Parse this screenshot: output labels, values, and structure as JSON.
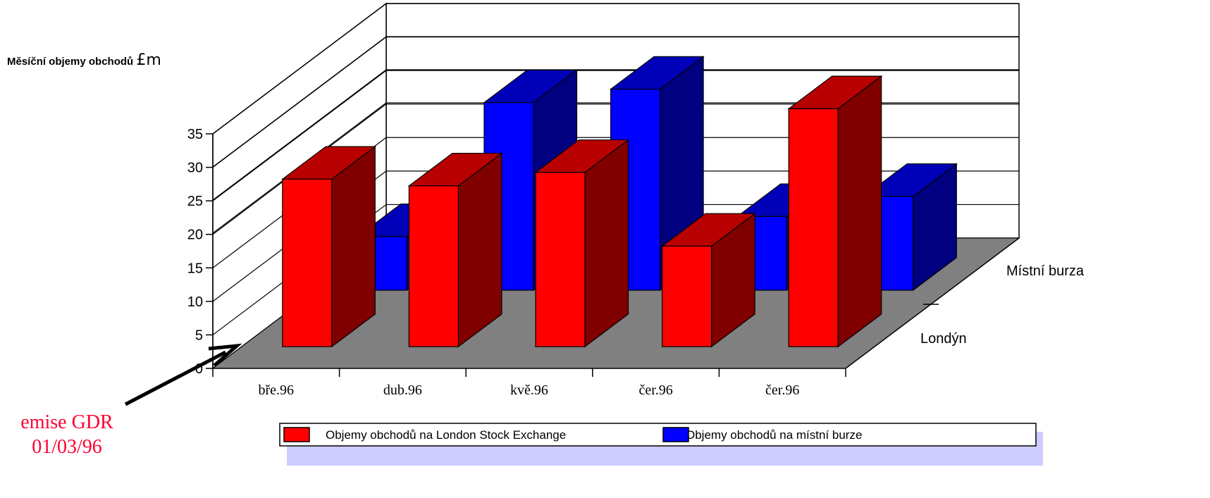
{
  "chart_data": {
    "type": "bar",
    "style": "3d-column-depth",
    "title": "Měsíční objemy obchodů",
    "title_unit": "£m",
    "categories": [
      "bře.96",
      "dub.96",
      "kvě.96",
      "čer.96",
      "čer.96"
    ],
    "depth_labels": [
      "Londýn",
      "Místní burza"
    ],
    "yticks": [
      "0",
      "5",
      "10",
      "15",
      "20",
      "25",
      "30",
      "35"
    ],
    "ylim": [
      0,
      35
    ],
    "grid": true,
    "legend_position": "bottom",
    "series": [
      {
        "name": "Objemy obchodů na London Stock Exchange",
        "depth": "Londýn",
        "values": [
          25,
          24,
          26,
          15,
          35.5
        ],
        "color": "#ff0000"
      },
      {
        "name": "Objemy obchodů na místní burze",
        "depth": "Místní burza",
        "values": [
          8,
          28,
          30,
          11,
          14
        ],
        "color": "#0000ff"
      }
    ],
    "annotation": {
      "lines": [
        "emise GDR",
        "01/03/96"
      ],
      "color": "#ff0033"
    }
  }
}
